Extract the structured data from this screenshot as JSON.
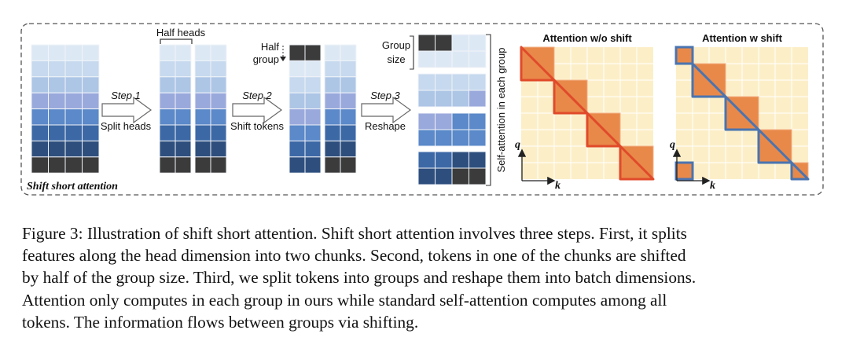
{
  "figure": {
    "panel_label": "Shift short attention",
    "half_heads_label": "Half heads",
    "half_group_label": [
      "Half",
      "group"
    ],
    "group_size_label": [
      "Group",
      "size"
    ],
    "self_attention_label": "Self-attention in each group",
    "step1": {
      "title": "Step 1",
      "sub": "Split heads"
    },
    "step2": {
      "title": "Step 2",
      "sub": "Shift tokens"
    },
    "step3": {
      "title": "Step 3",
      "sub": "Reshape"
    },
    "matrix_left_title": "Attention w/o shift",
    "matrix_right_title": "Attention w shift",
    "axis_q": "q",
    "axis_k": "k",
    "colors": {
      "row_shades": [
        "#dde8f5",
        "#c6d9ee",
        "#adc6e6",
        "#9aa9dc",
        "#5b89c9",
        "#3c68a6",
        "#2e4f7e",
        "#3b3b3b"
      ],
      "matrix_bg": "#fcefc8",
      "block_fill": "#e8894a",
      "red_outline": "#e04a2a",
      "blue_outline": "#4a74b0"
    }
  },
  "caption": {
    "lines": [
      "Figure 3: Illustration of shift short attention. Shift short attention involves three steps. First, it splits",
      "features along the head dimension into two chunks. Second, tokens in one of the chunks are shifted",
      "by half of the group size. Third, we split tokens into groups and reshape them into batch dimensions.",
      "Attention only computes in each group in ours while standard self-attention computes among all",
      "tokens. The information flows between groups via shifting."
    ]
  }
}
